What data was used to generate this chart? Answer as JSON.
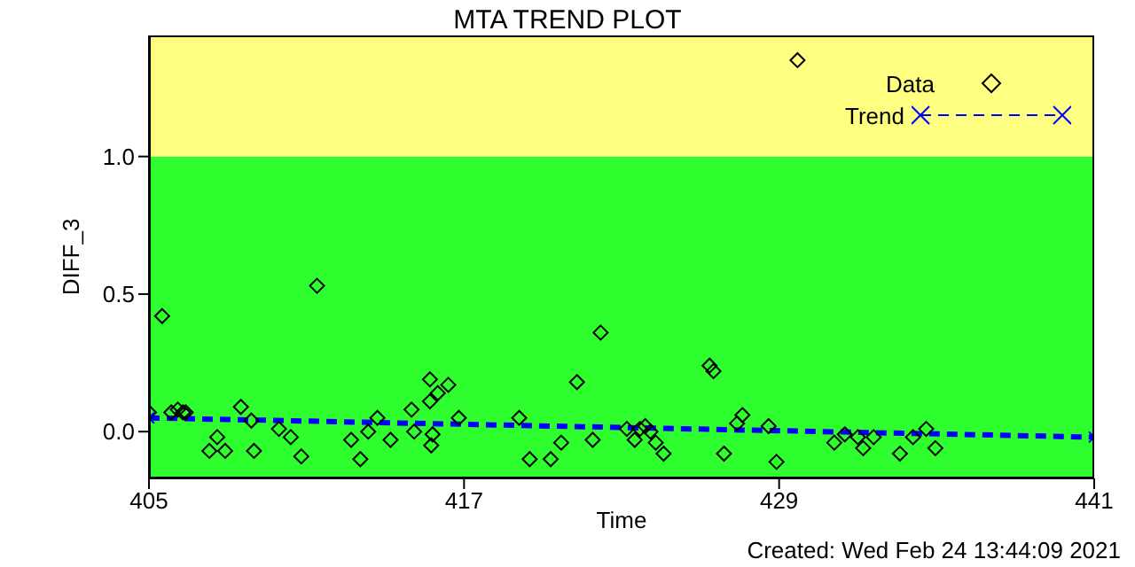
{
  "chart_data": {
    "type": "scatter",
    "title": "MTA TREND PLOT",
    "xlabel": "Time",
    "ylabel": "DIFF_3",
    "xlim": [
      405,
      441
    ],
    "xticks": [
      405,
      417,
      429,
      441
    ],
    "ylim": [
      -0.17,
      1.44
    ],
    "yticks": [
      {
        "value": 0,
        "label": "0.0"
      },
      {
        "value": 0.5,
        "label": "0.5"
      },
      {
        "value": 1,
        "label": "1.0"
      }
    ],
    "grid": false,
    "legend": "top right",
    "bands": [
      {
        "axis": "y",
        "from": -0.17,
        "to": 1,
        "color": "#2efe2e"
      },
      {
        "axis": "y",
        "from": 1,
        "to": 1.44,
        "color": "#fefe80"
      }
    ],
    "annotations": [
      "Created: Wed Feb 24 13:44:09 2021"
    ],
    "series": [
      {
        "name": "Data",
        "color": "#000000",
        "marker": "diamond",
        "x": [
          405.0,
          405.5,
          405.85,
          406.1,
          406.3,
          406.4,
          407.3,
          407.6,
          407.9,
          408.5,
          408.9,
          409.0,
          409.95,
          410.4,
          410.8,
          411.4,
          412.7,
          413.05,
          413.35,
          413.7,
          414.2,
          415.0,
          415.1,
          415.7,
          415.7,
          416.0,
          416.4,
          415.8,
          415.75,
          416.8,
          419.1,
          419.5,
          420.3,
          420.7,
          421.3,
          421.9,
          422.2,
          423.2,
          423.5,
          423.7,
          423.9,
          424.1,
          424.3,
          424.6,
          426.35,
          426.5,
          426.9,
          427.4,
          427.6,
          428.6,
          428.9,
          429.7,
          431.1,
          431.5,
          432.0,
          432.2,
          432.6,
          433.6,
          434.1,
          434.6,
          434.95
        ],
        "values": [
          0.07,
          0.42,
          0.07,
          0.08,
          0.07,
          0.07,
          -0.07,
          -0.02,
          -0.07,
          0.09,
          0.04,
          -0.07,
          0.01,
          -0.02,
          -0.09,
          0.53,
          -0.03,
          -0.1,
          0.0,
          0.05,
          -0.03,
          0.08,
          0.0,
          0.19,
          0.11,
          0.14,
          0.17,
          -0.01,
          -0.05,
          0.05,
          0.05,
          -0.1,
          -0.1,
          -0.04,
          0.18,
          -0.03,
          0.36,
          0.01,
          -0.03,
          0.01,
          0.02,
          0.0,
          -0.04,
          -0.08,
          0.24,
          0.22,
          -0.08,
          0.03,
          0.06,
          0.02,
          -0.11,
          1.35,
          -0.04,
          -0.01,
          -0.02,
          -0.06,
          -0.02,
          -0.08,
          -0.02,
          0.01,
          -0.06
        ]
      },
      {
        "name": "Trend",
        "type": "line",
        "color": "#0000ff",
        "marker": "cross",
        "line_style": "dashed",
        "x": [
          405,
          441
        ],
        "values": [
          0.05,
          -0.02
        ]
      }
    ]
  }
}
